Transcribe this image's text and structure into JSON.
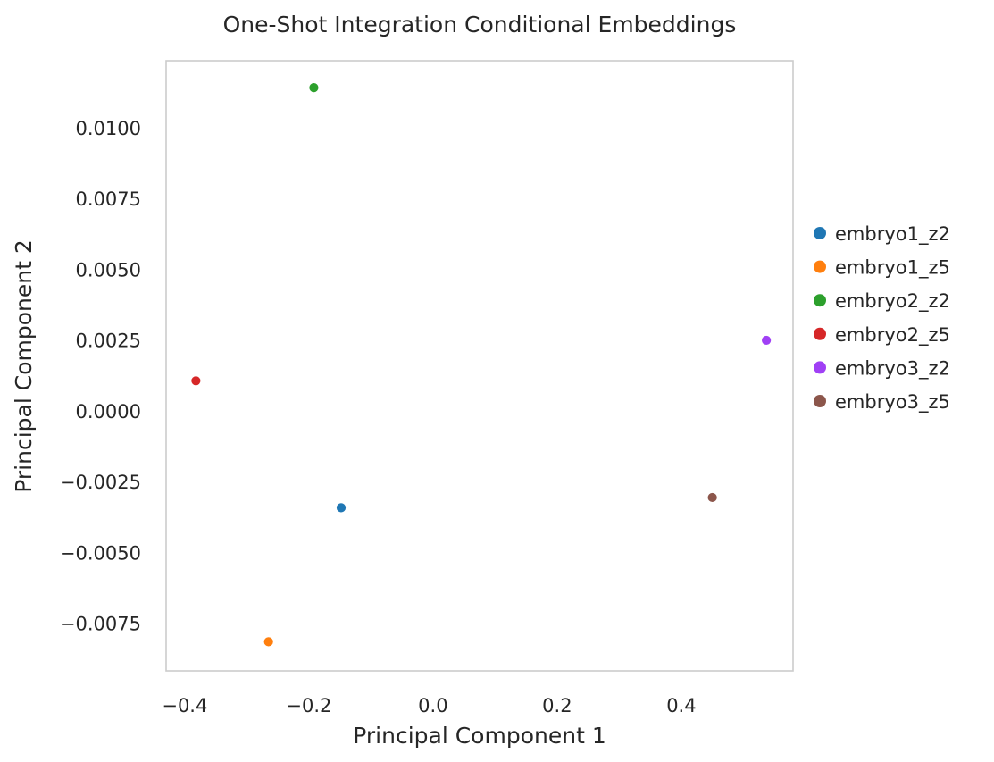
{
  "chart_data": {
    "type": "scatter",
    "title": "One-Shot Integration Conditional Embeddings",
    "xlabel": "Principal Component 1",
    "ylabel": "Principal Component 2",
    "xlim": [
      -0.43,
      0.58
    ],
    "ylim": [
      -0.00918,
      0.01236
    ],
    "x_ticks": [
      {
        "value": -0.4,
        "label": "−0.4"
      },
      {
        "value": -0.2,
        "label": "−0.2"
      },
      {
        "value": 0.0,
        "label": "0.0"
      },
      {
        "value": 0.2,
        "label": "0.2"
      },
      {
        "value": 0.4,
        "label": "0.4"
      }
    ],
    "y_ticks": [
      {
        "value": -0.0075,
        "label": "−0.0075"
      },
      {
        "value": -0.005,
        "label": "−0.0050"
      },
      {
        "value": -0.0025,
        "label": "−0.0025"
      },
      {
        "value": 0.0,
        "label": "0.0000"
      },
      {
        "value": 0.0025,
        "label": "0.0025"
      },
      {
        "value": 0.005,
        "label": "0.0050"
      },
      {
        "value": 0.0075,
        "label": "0.0075"
      },
      {
        "value": 0.01,
        "label": "0.0100"
      }
    ],
    "grid": false,
    "legend_position": "right",
    "series": [
      {
        "name": "embryo1_z2",
        "color": "#1f77b4",
        "x": -0.148,
        "y": -0.00342
      },
      {
        "name": "embryo1_z5",
        "color": "#ff7f0e",
        "x": -0.265,
        "y": -0.00815
      },
      {
        "name": "embryo2_z2",
        "color": "#2ca02c",
        "x": -0.192,
        "y": 0.01141
      },
      {
        "name": "embryo2_z5",
        "color": "#d62728",
        "x": -0.382,
        "y": 0.00106
      },
      {
        "name": "embryo3_z2",
        "color": "#a040f5",
        "x": 0.537,
        "y": 0.00249
      },
      {
        "name": "embryo3_z5",
        "color": "#8c564b",
        "x": 0.45,
        "y": -0.00306
      }
    ]
  }
}
